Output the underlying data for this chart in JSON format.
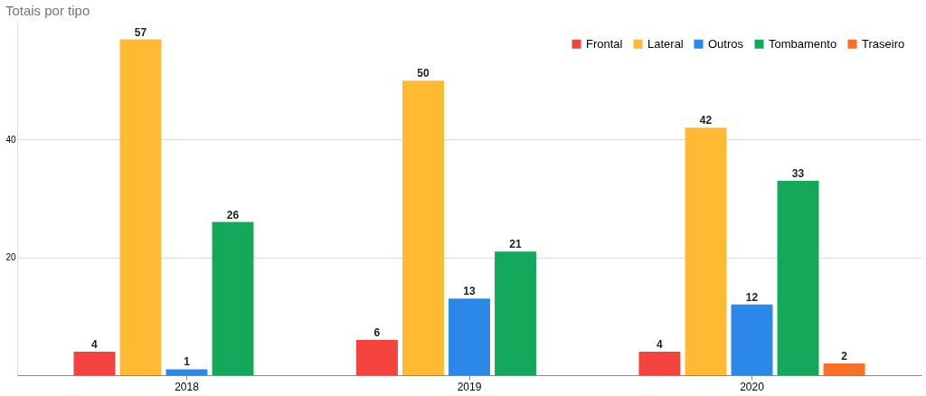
{
  "chart_data": {
    "type": "bar",
    "title": "Totais por tipo",
    "categories": [
      "2018",
      "2019",
      "2020"
    ],
    "series": [
      {
        "name": "Frontal",
        "color": "#f4433c",
        "values": [
          4,
          6,
          4
        ]
      },
      {
        "name": "Lateral",
        "color": "#ffb933",
        "values": [
          57,
          50,
          42
        ]
      },
      {
        "name": "Outros",
        "color": "#2b87e8",
        "values": [
          1,
          13,
          12
        ]
      },
      {
        "name": "Tombamento",
        "color": "#14a85a",
        "values": [
          26,
          21,
          33
        ]
      },
      {
        "name": "Traseiro",
        "color": "#fb7024",
        "values": [
          null,
          null,
          2
        ]
      }
    ],
    "ylim": [
      0,
      60
    ],
    "yticks": [
      {
        "value": 0,
        "label": null
      },
      20,
      40
    ],
    "grid": "y",
    "legend": "top right",
    "data_labels": true
  }
}
